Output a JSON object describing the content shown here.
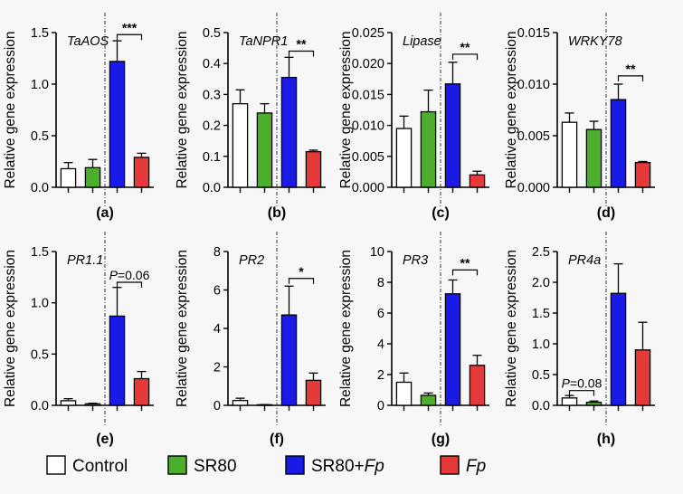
{
  "colors": {
    "Control": "#ffffff",
    "SR80": "#4caf2c",
    "SR80+Fp": "#1a1ae6",
    "Fp": "#e63a3a",
    "axis": "#000000"
  },
  "legend": [
    {
      "key": "Control",
      "label": "Control",
      "italic": false
    },
    {
      "key": "SR80",
      "label": "SR80",
      "italic": false
    },
    {
      "key": "SR80+Fp",
      "label": "SR80+",
      "italic_suffix": "Fp"
    },
    {
      "key": "Fp",
      "label": "",
      "italic_suffix": "Fp"
    }
  ],
  "chart_data": [
    {
      "type": "bar",
      "panel": "(a)",
      "gene": "TaAOS",
      "ylabel": "Relative gene expression",
      "ylim": [
        0,
        1.5
      ],
      "yticks": [
        "0.0",
        "0.5",
        "1.0",
        "1.5"
      ],
      "ytick_values": [
        0,
        0.5,
        1.0,
        1.5
      ],
      "categories": [
        "Control",
        "SR80",
        "SR80+Fp",
        "Fp"
      ],
      "values": [
        0.18,
        0.19,
        1.22,
        0.29
      ],
      "errors": [
        0.06,
        0.08,
        0.2,
        0.04
      ],
      "sig": [
        {
          "from": 2,
          "to": 3,
          "text": "***",
          "y": 1.48
        }
      ]
    },
    {
      "type": "bar",
      "panel": "(b)",
      "gene": "TaNPR1",
      "ylabel": "Relative gene expression",
      "ylim": [
        0,
        0.5
      ],
      "yticks": [
        "0.0",
        "0.1",
        "0.2",
        "0.3",
        "0.4",
        "0.5"
      ],
      "ytick_values": [
        0,
        0.1,
        0.2,
        0.3,
        0.4,
        0.5
      ],
      "categories": [
        "Control",
        "SR80",
        "SR80+Fp",
        "Fp"
      ],
      "values": [
        0.27,
        0.24,
        0.355,
        0.115
      ],
      "errors": [
        0.045,
        0.03,
        0.065,
        0.005
      ],
      "sig": [
        {
          "from": 2,
          "to": 3,
          "text": "**",
          "y": 0.44
        }
      ]
    },
    {
      "type": "bar",
      "panel": "(c)",
      "gene": "Lipase",
      "ylabel": "Relative gene expression",
      "ylim": [
        0,
        0.025
      ],
      "yticks": [
        "0.000",
        "0.005",
        "0.010",
        "0.015",
        "0.020",
        "0.025"
      ],
      "ytick_values": [
        0,
        0.005,
        0.01,
        0.015,
        0.02,
        0.025
      ],
      "categories": [
        "Control",
        "SR80",
        "SR80+Fp",
        "Fp"
      ],
      "values": [
        0.0095,
        0.0122,
        0.0167,
        0.002
      ],
      "errors": [
        0.002,
        0.0035,
        0.0035,
        0.0006
      ],
      "sig": [
        {
          "from": 2,
          "to": 3,
          "text": "**",
          "y": 0.0215
        }
      ]
    },
    {
      "type": "bar",
      "panel": "(d)",
      "gene": "WRKY78",
      "ylabel": "Relative gene expression",
      "ylim": [
        0,
        0.015
      ],
      "yticks": [
        "0.000",
        "0.005",
        "0.010",
        "0.015"
      ],
      "ytick_values": [
        0,
        0.005,
        0.01,
        0.015
      ],
      "categories": [
        "Control",
        "SR80",
        "SR80+Fp",
        "Fp"
      ],
      "values": [
        0.0063,
        0.0056,
        0.0085,
        0.0024
      ],
      "errors": [
        0.0009,
        0.0008,
        0.0015,
        0.0001
      ],
      "sig": [
        {
          "from": 2,
          "to": 3,
          "text": "**",
          "y": 0.0108
        }
      ]
    },
    {
      "type": "bar",
      "panel": "(e)",
      "gene": "PR1.1",
      "ylabel": "Relative gene expression",
      "ylim": [
        0,
        1.5
      ],
      "yticks": [
        "0.0",
        "0.5",
        "1.0",
        "1.5"
      ],
      "ytick_values": [
        0,
        0.5,
        1.0,
        1.5
      ],
      "categories": [
        "Control",
        "SR80",
        "SR80+Fp",
        "Fp"
      ],
      "values": [
        0.045,
        0.015,
        0.87,
        0.26
      ],
      "errors": [
        0.02,
        0.005,
        0.28,
        0.07
      ],
      "sig": [
        {
          "from": 2,
          "to": 3,
          "text": "=0.06",
          "prefix_italic": "P",
          "y": 1.2
        }
      ]
    },
    {
      "type": "bar",
      "panel": "(f)",
      "gene": "PR2",
      "ylabel": "Relative gene expression",
      "ylim": [
        0,
        8
      ],
      "yticks": [
        "0",
        "2",
        "4",
        "6",
        "8"
      ],
      "ytick_values": [
        0,
        2,
        4,
        6,
        8
      ],
      "categories": [
        "Control",
        "SR80",
        "SR80+Fp",
        "Fp"
      ],
      "values": [
        0.25,
        0.03,
        4.7,
        1.3
      ],
      "errors": [
        0.12,
        0.01,
        1.5,
        0.38
      ],
      "sig": [
        {
          "from": 2,
          "to": 3,
          "text": "*",
          "y": 6.6
        }
      ]
    },
    {
      "type": "bar",
      "panel": "(g)",
      "gene": "PR3",
      "ylabel": "Relative gene expression",
      "ylim": [
        0,
        10
      ],
      "yticks": [
        "0",
        "2",
        "4",
        "6",
        "8",
        "10"
      ],
      "ytick_values": [
        0,
        2,
        4,
        6,
        8,
        10
      ],
      "categories": [
        "Control",
        "SR80",
        "SR80+Fp",
        "Fp"
      ],
      "values": [
        1.5,
        0.65,
        7.25,
        2.6
      ],
      "errors": [
        0.6,
        0.15,
        0.9,
        0.65
      ],
      "sig": [
        {
          "from": 2,
          "to": 3,
          "text": "**",
          "y": 8.8
        }
      ]
    },
    {
      "type": "bar",
      "panel": "(h)",
      "gene": "PR4a",
      "ylabel": "Relative gene expression",
      "ylim": [
        0,
        2.5
      ],
      "yticks": [
        "0.0",
        "0.5",
        "1.0",
        "1.5",
        "2.0",
        "2.5"
      ],
      "ytick_values": [
        0,
        0.5,
        1.0,
        1.5,
        2.0,
        2.5
      ],
      "categories": [
        "Control",
        "SR80",
        "SR80+Fp",
        "Fp"
      ],
      "values": [
        0.12,
        0.05,
        1.82,
        0.9
      ],
      "errors": [
        0.04,
        0.02,
        0.48,
        0.45
      ],
      "sig": [
        {
          "from": 0,
          "to": 1,
          "text": "=0.08",
          "prefix_italic": "P",
          "y": 0.24
        }
      ]
    }
  ]
}
